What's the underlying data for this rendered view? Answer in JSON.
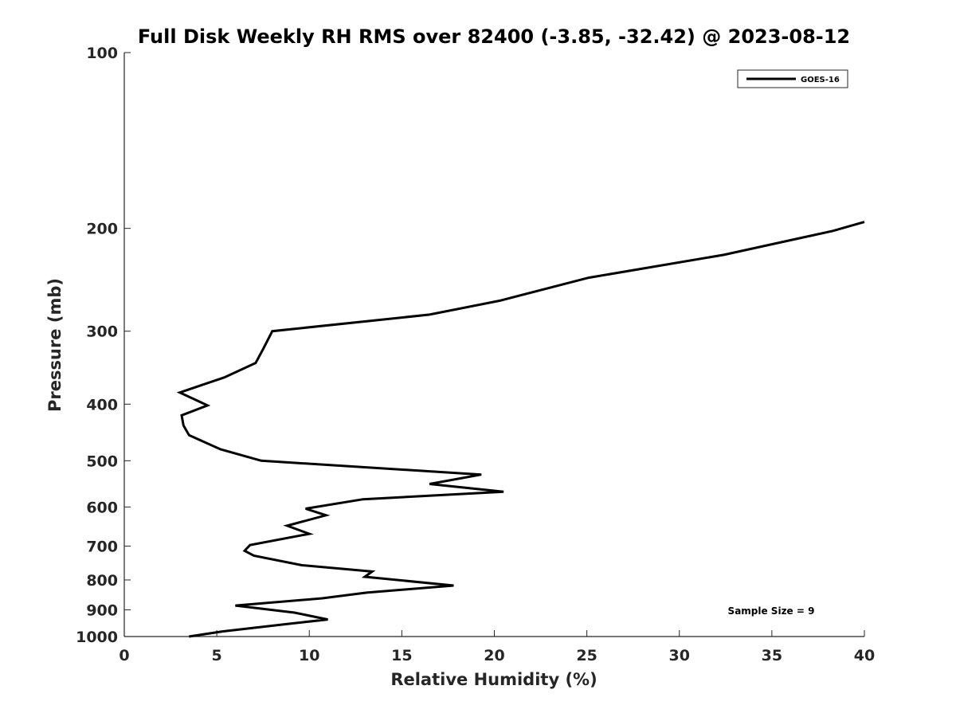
{
  "chart_data": {
    "type": "line",
    "title": "Full Disk Weekly RH RMS over 82400 (-3.85, -32.42) @ 2023-08-12",
    "xlabel": "Relative Humidity (%)",
    "ylabel": "Pressure (mb)",
    "xlim": [
      0,
      40
    ],
    "ylim": [
      100,
      1000
    ],
    "y_scale": "log",
    "y_reversed": true,
    "x_ticks": [
      0,
      5,
      10,
      15,
      20,
      25,
      30,
      35,
      40
    ],
    "y_ticks": [
      100,
      200,
      300,
      400,
      500,
      600,
      700,
      800,
      900,
      1000
    ],
    "grid": false,
    "legend_position": "top-right",
    "annotation": "Sample Size = 9",
    "line_color": "#000000",
    "series": [
      {
        "name": "GOES-16",
        "x": [
          40.0,
          38.3,
          32.4,
          25.1,
          20.3,
          16.5,
          8.0,
          7.5,
          7.1,
          5.4,
          3.0,
          4.5,
          3.1,
          3.2,
          3.5,
          5.2,
          7.4,
          19.3,
          16.5,
          20.5,
          12.9,
          9.8,
          10.9,
          8.8,
          10.0,
          6.8,
          6.5,
          7.0,
          9.6,
          13.4,
          13.0,
          17.8,
          13.1,
          10.7,
          6.0,
          9.2,
          11.0,
          9.0,
          5.3,
          3.5
        ],
        "y": [
          195,
          202,
          222,
          243,
          266,
          281,
          300,
          322,
          340,
          360,
          382,
          402,
          418,
          435,
          452,
          478,
          500,
          528,
          548,
          565,
          582,
          604,
          620,
          646,
          667,
          697,
          713,
          727,
          755,
          774,
          790,
          818,
          841,
          860,
          885,
          910,
          935,
          950,
          980,
          1000
        ]
      }
    ]
  }
}
